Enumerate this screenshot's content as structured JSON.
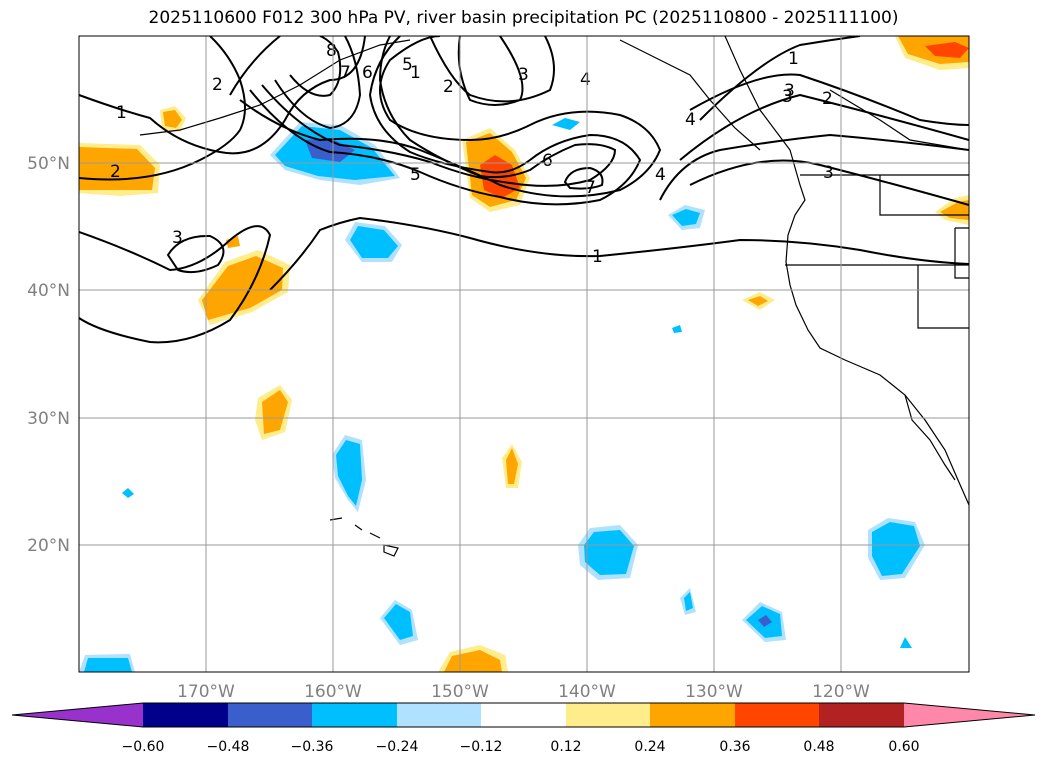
{
  "title": "2025110600 F012 300 hPa PV, river basin precipitation PC (2025110800 - 2025111100)",
  "map": {
    "lon_range": [
      -180,
      -110
    ],
    "lat_range": [
      10,
      60
    ],
    "lon_labels": [
      "170°W",
      "160°W",
      "150°W",
      "140°W",
      "130°W",
      "120°W"
    ],
    "lat_labels": [
      "50°N",
      "40°N",
      "30°N",
      "20°N"
    ]
  },
  "pv_contour_labels": [
    "1",
    "2",
    "3",
    "4",
    "5",
    "6",
    "7",
    "8",
    "1",
    "2",
    "3",
    "2",
    "3",
    "4",
    "6",
    "7",
    "4",
    "5",
    "1",
    "1",
    "2",
    "3",
    "3"
  ],
  "colorbar": {
    "ticks": [
      "−0.60",
      "−0.48",
      "−0.36",
      "−0.24",
      "−0.12",
      "0.12",
      "0.24",
      "0.36",
      "0.48",
      "0.60"
    ],
    "colors": [
      "#9932CC",
      "#00008B",
      "#3A5FCD",
      "#00BFFF",
      "#B0E2FF",
      "#FFFFFF",
      "#FFEC8B",
      "#FFA500",
      "#FF4500",
      "#B22222",
      "#FF88AA"
    ]
  }
}
